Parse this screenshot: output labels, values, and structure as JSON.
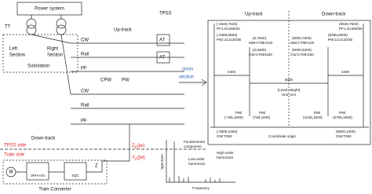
{
  "title": "TPSS",
  "power_system": {
    "label": "Power system",
    "transformer": "TT",
    "left_section": [
      "Left",
      "Section"
    ],
    "right_section": [
      "Right",
      "Section"
    ],
    "substation": "Substation"
  },
  "up_track": {
    "label": "Up-track",
    "conductors": [
      "CW",
      "Rail",
      "PF"
    ],
    "autotransformers": [
      "AT",
      "AT"
    ],
    "cpw": "CPW",
    "pw": "PW"
  },
  "down_track": {
    "label": "Down-track",
    "conductors": [
      "CW",
      "Rail",
      "PF"
    ]
  },
  "cross_section_link": [
    "cross",
    "section"
  ],
  "boundary": {
    "upper": "TPSS side",
    "lower": "Train side"
  },
  "impedance": {
    "symbol": "Z",
    "sub": "c",
    "arg": "(jw)"
  },
  "admittance": {
    "symbol": "Y",
    "sub": "c",
    "arg": "(jw)"
  },
  "train_converter": {
    "label": "Train Converter",
    "motor": "M",
    "inverter": "3PH-VSI",
    "rectifier": "4QC",
    "filter": "Z"
  },
  "spectrum": {
    "y_label": "Spectrum",
    "x_label": "Frequency",
    "fundamental": [
      "Fundamental",
      "component"
    ],
    "low_order": [
      "Low-order",
      "harmonics"
    ],
    "high_order": [
      "High-order",
      "harmonics"
    ]
  },
  "cross_section": {
    "up_track": "Up-track",
    "down_track": "Down-track",
    "wires": [
      [
        "(-4640,7625)",
        "PF:LGJ400/50"
      ],
      [
        "(-3365,6600)",
        "PW:LGJ120/35"
      ],
      [
        "(0,7900)",
        "MW:CTMH120"
      ],
      [
        "(0,6300)",
        "CW:CTMH150"
      ],
      [
        "(5000,7900)",
        "MW:CTMH120"
      ],
      [
        "(5000,6300)",
        "CW:CTMH150"
      ],
      [
        "(8365,6600)",
        "PW:LGJ120/35"
      ],
      [
        "(9640,7625)",
        "PF:LGJ400/65"
      ]
    ],
    "dims": [
      "4400",
      "4400",
      "5000"
    ],
    "unit": [
      "(Level,Height)",
      "Unit: mm"
    ],
    "rails": [
      [
        "P60",
        "(-755,1000)"
      ],
      [
        "P60",
        "(755,1000)"
      ],
      [
        "P60",
        "(4245,1000)"
      ],
      [
        "P60",
        "(5755,1000)"
      ]
    ],
    "ground_wires": [
      [
        "(-3900,1000)",
        "GW:T350"
      ],
      [
        "(8900,1000)",
        "GW:T350"
      ]
    ],
    "origin": "Coordinate origin"
  }
}
